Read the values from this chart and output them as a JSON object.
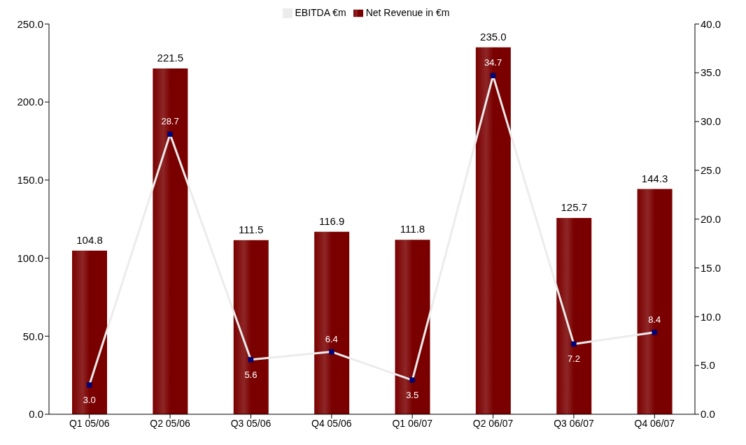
{
  "chart_data": {
    "type": "bar",
    "categories": [
      "Q1 05/06",
      "Q2 05/06",
      "Q3 05/06",
      "Q4 05/06",
      "Q1 06/07",
      "Q2 06/07",
      "Q3 06/07",
      "Q4 06/07"
    ],
    "series": [
      {
        "name": "Net Revenue in €m",
        "color": "#7a0000",
        "values": [
          104.8,
          221.5,
          111.5,
          116.9,
          111.8,
          235.0,
          125.7,
          144.3
        ],
        "value_labels": [
          "104.8",
          "221.5",
          "111.5",
          "116.9",
          "111.8",
          "235.0",
          "125.7",
          "144.3"
        ]
      },
      {
        "name": "EBITDA €m",
        "type": "line",
        "axis": "y2",
        "color": "#ececec",
        "marker": "square",
        "values": [
          3.0,
          28.7,
          5.6,
          6.4,
          3.5,
          34.7,
          7.2,
          8.4
        ],
        "value_labels": [
          "3.0",
          "28.7",
          "5.6",
          "6.4",
          "3.5",
          "34.7",
          "7.2",
          "8.4"
        ]
      }
    ],
    "ylim": [
      0,
      250
    ],
    "yticks": [
      {
        "value": 0,
        "label": "0.0"
      },
      {
        "value": 50,
        "label": "50.0"
      },
      {
        "value": 100,
        "label": "100.0"
      },
      {
        "value": 150,
        "label": "150.0"
      },
      {
        "value": 200,
        "label": "200.0"
      },
      {
        "value": 250,
        "label": "250.0"
      }
    ],
    "y2lim": [
      0,
      40
    ],
    "y2ticks": [
      {
        "value": 0,
        "label": "0.0"
      },
      {
        "value": 5,
        "label": "5.0"
      },
      {
        "value": 10,
        "label": "10.0"
      },
      {
        "value": 15,
        "label": "15.0"
      },
      {
        "value": 20,
        "label": "20.0"
      },
      {
        "value": 25,
        "label": "25.0"
      },
      {
        "value": 30,
        "label": "30.0"
      },
      {
        "value": 35,
        "label": "35.0"
      },
      {
        "value": 40,
        "label": "40.0"
      }
    ],
    "legend": "top",
    "grid": false
  }
}
